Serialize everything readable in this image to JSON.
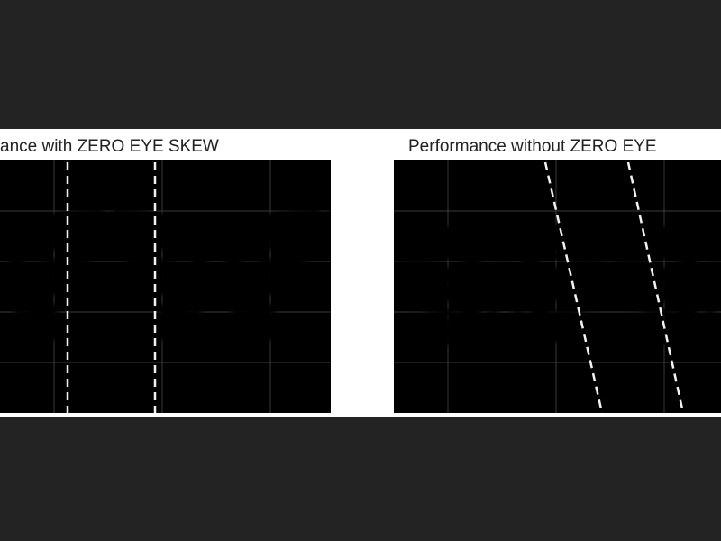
{
  "panels": [
    {
      "title": "ance with ZERO EYE SKEW"
    },
    {
      "title": "Performance without ZERO EYE"
    }
  ]
}
